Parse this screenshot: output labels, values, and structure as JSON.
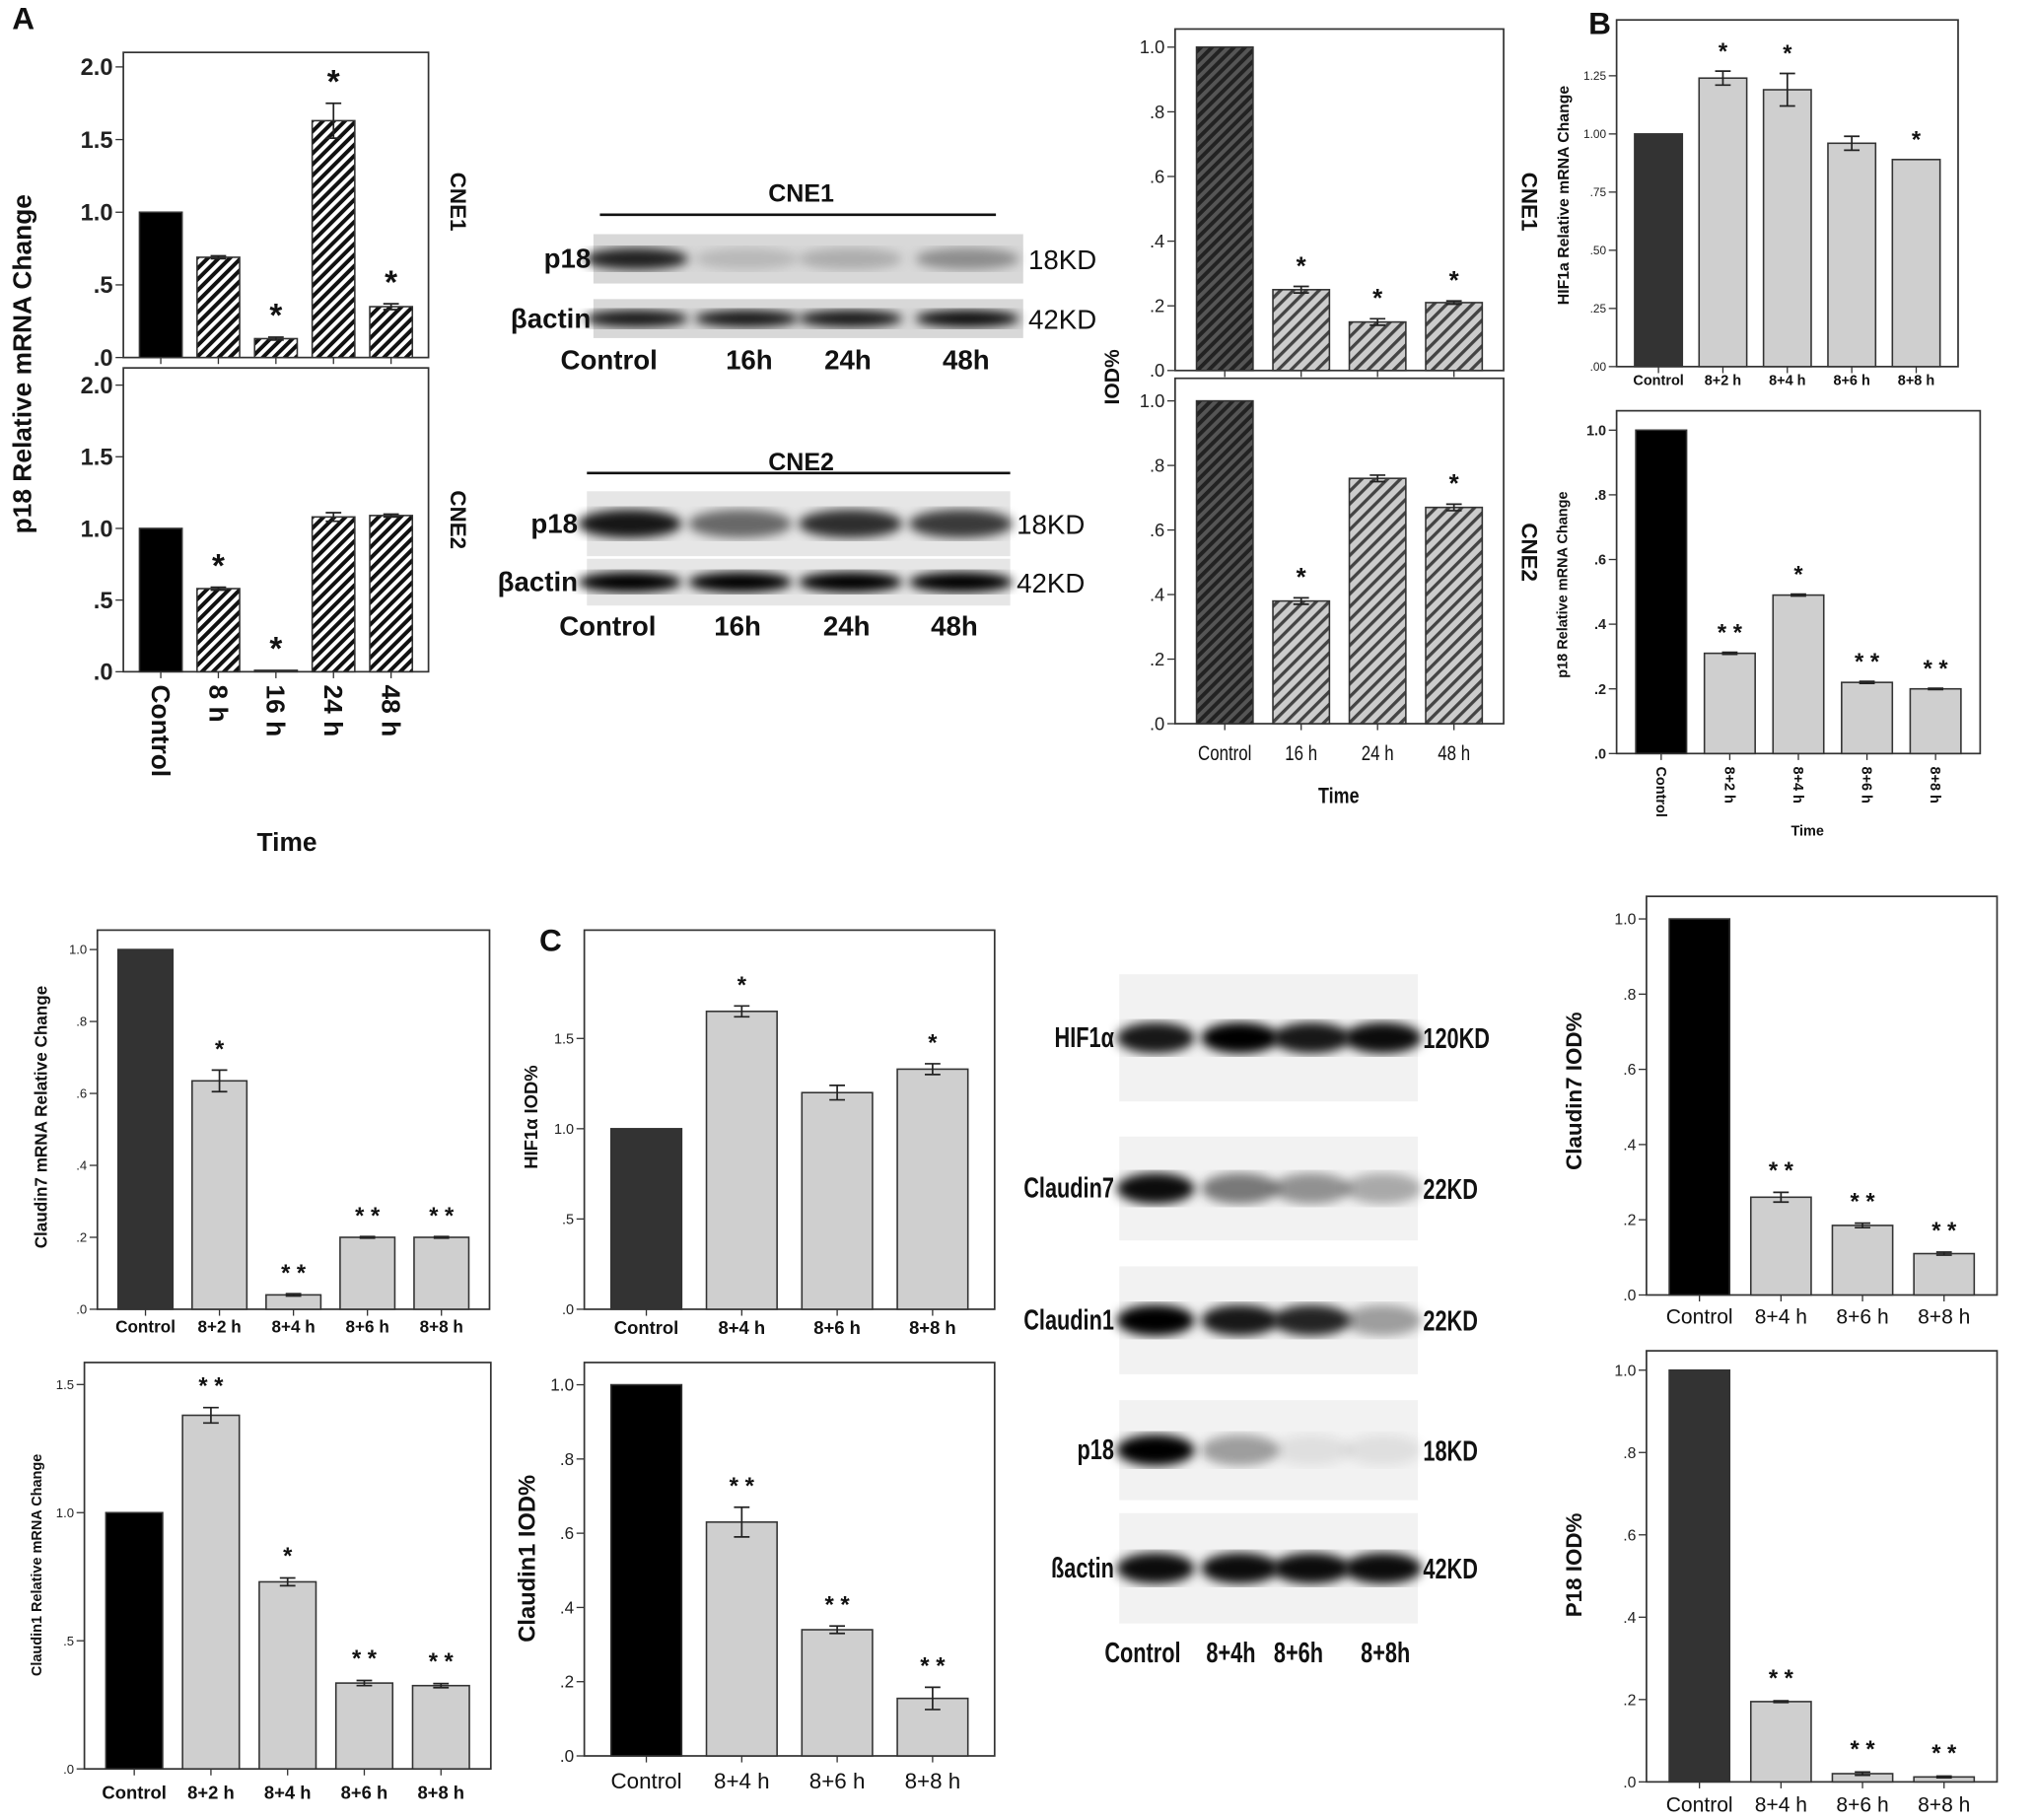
{
  "panel_letters": [
    "A",
    "B",
    "C"
  ],
  "shared_labels": {
    "a_mrna_ylabel": "p18 Relative mRNA Change",
    "a_iod_ylabel": "IOD%"
  },
  "chart_data": [
    {
      "type": "bar",
      "side_label": "CNE1",
      "categories": [
        "Control",
        "8 h",
        "16 h",
        "24 h",
        "48 h"
      ],
      "show_categories": false,
      "values": [
        1.0,
        0.69,
        0.13,
        1.63,
        0.35
      ],
      "errors": [
        0,
        0.01,
        0.01,
        0.12,
        0.02
      ],
      "significance": [
        "",
        "",
        "*",
        "*",
        "*"
      ],
      "yticks": [
        0,
        0.5,
        1.0,
        1.5,
        2.0
      ],
      "ytick_labels": [
        ".0",
        ".5",
        "1.0",
        "1.5",
        "2.0"
      ],
      "ylim": [
        0,
        2.1
      ],
      "style": "hatched-black"
    },
    {
      "type": "bar",
      "side_label": "CNE2",
      "xlabel": "Time",
      "categories": [
        "Control",
        "8 h",
        "16 h",
        "24 h",
        "48 h"
      ],
      "values": [
        1.0,
        0.58,
        0.01,
        1.08,
        1.09
      ],
      "errors": [
        0,
        0.01,
        0,
        0.03,
        0.01
      ],
      "significance": [
        "",
        "*",
        "*",
        "",
        ""
      ],
      "yticks": [
        0,
        0.5,
        1.0,
        1.5,
        2.0
      ],
      "ytick_labels": [
        ".0",
        ".5",
        "1.0",
        "1.5",
        "2.0"
      ],
      "ylim": [
        0,
        2.12
      ],
      "style": "hatched-black"
    },
    {
      "type": "bar",
      "side_label": "CNE1",
      "categories": [
        "Control",
        "16 h",
        "24 h",
        "48 h"
      ],
      "show_categories": false,
      "values": [
        1.0,
        0.25,
        0.15,
        0.21
      ],
      "errors": [
        0,
        0.01,
        0.01,
        0.005
      ],
      "significance": [
        "",
        "*",
        "*",
        "*"
      ],
      "yticks": [
        0,
        0.2,
        0.4,
        0.6,
        0.8,
        1.0
      ],
      "ytick_labels": [
        ".0",
        ".2",
        ".4",
        ".6",
        ".8",
        "1.0"
      ],
      "ylim": [
        0,
        1.056
      ],
      "style": "hatched-gray"
    },
    {
      "type": "bar",
      "side_label": "CNE2",
      "xlabel": "Time",
      "categories": [
        "Control",
        "16 h",
        "24 h",
        "48 h"
      ],
      "values": [
        1.0,
        0.38,
        0.76,
        0.67
      ],
      "errors": [
        0,
        0.01,
        0.01,
        0.01
      ],
      "significance": [
        "",
        "*",
        "",
        "*"
      ],
      "yticks": [
        0,
        0.2,
        0.4,
        0.6,
        0.8,
        1.0
      ],
      "ytick_labels": [
        ".0",
        ".2",
        ".4",
        ".6",
        ".8",
        "1.0"
      ],
      "ylim": [
        0,
        1.07
      ],
      "style": "hatched-gray"
    },
    {
      "type": "bar",
      "ylabel": "HIF1a Relative mRNA Change",
      "categories": [
        "Control",
        "8+2 h",
        "8+4 h",
        "8+6 h",
        "8+8 h"
      ],
      "values": [
        1.0,
        1.24,
        1.19,
        0.96,
        0.89
      ],
      "errors": [
        0,
        0.03,
        0.07,
        0.03,
        0
      ],
      "significance": [
        "",
        "*",
        "*",
        "",
        "*"
      ],
      "yticks": [
        0,
        0.25,
        0.5,
        0.75,
        1.0,
        1.25
      ],
      "ytick_labels": [
        ".00",
        ".25",
        ".50",
        ".75",
        "1.00",
        "1.25"
      ],
      "ylim": [
        0,
        1.49
      ],
      "style": "solid-dark"
    },
    {
      "type": "bar",
      "ylabel": "p18 Relative mRNA Change",
      "xlabel": "Time",
      "categories": [
        "Control",
        "8+2 h",
        "8+4 h",
        "8+6 h",
        "8+8 h"
      ],
      "values": [
        1.0,
        0.31,
        0.49,
        0.22,
        0.2
      ],
      "errors": [
        0,
        0.003,
        0.003,
        0.003,
        0.002
      ],
      "significance": [
        "",
        "* *",
        "*",
        "* *",
        "* *"
      ],
      "yticks": [
        0,
        0.2,
        0.4,
        0.6,
        0.8,
        1.0
      ],
      "ytick_labels": [
        ".0",
        ".2",
        ".4",
        ".6",
        ".8",
        "1.0"
      ],
      "ylim": [
        0,
        1.06
      ],
      "style": "solid-black"
    },
    {
      "type": "bar",
      "ylabel": "Claudin7 mRNA Relative Change",
      "categories": [
        "Control",
        "8+2 h",
        "8+4 h",
        "8+6 h",
        "8+8 h"
      ],
      "values": [
        1.0,
        0.635,
        0.04,
        0.2,
        0.2
      ],
      "errors": [
        0,
        0.03,
        0.003,
        0.002,
        0.002
      ],
      "significance": [
        "",
        "*",
        "* *",
        "* *",
        "* *"
      ],
      "yticks": [
        0,
        0.2,
        0.4,
        0.6,
        0.8,
        1.0
      ],
      "ytick_labels": [
        ".0",
        ".2",
        ".4",
        ".6",
        ".8",
        "1.0"
      ],
      "ylim": [
        0,
        1.054
      ],
      "style": "solid-dark"
    },
    {
      "type": "bar",
      "ylabel": "HIF1α IOD%",
      "categories": [
        "Control",
        "8+4 h",
        "8+6 h",
        "8+8 h"
      ],
      "values": [
        1.0,
        1.65,
        1.2,
        1.33
      ],
      "errors": [
        0,
        0.03,
        0.04,
        0.03
      ],
      "significance": [
        "",
        "*",
        "",
        "*"
      ],
      "yticks": [
        0,
        0.5,
        1.0,
        1.5
      ],
      "ytick_labels": [
        ".0",
        ".5",
        "1.0",
        "1.5"
      ],
      "ylim": [
        0,
        2.1
      ],
      "style": "solid-dark"
    },
    {
      "type": "bar",
      "ylabel": "Claudin1 Relative mRNA Change",
      "categories": [
        "Control",
        "8+2 h",
        "8+4 h",
        "8+6 h",
        "8+8 h"
      ],
      "values": [
        1.0,
        1.38,
        0.73,
        0.335,
        0.325
      ],
      "errors": [
        0,
        0.03,
        0.015,
        0.01,
        0.008
      ],
      "significance": [
        "",
        "* *",
        "*",
        "* *",
        "* *"
      ],
      "yticks": [
        0,
        0.5,
        1.0,
        1.5
      ],
      "ytick_labels": [
        ".0",
        ".5",
        "1.0",
        "1.5"
      ],
      "ylim": [
        0,
        1.586
      ],
      "style": "solid-black"
    },
    {
      "type": "bar",
      "ylabel": "Claudin1 IOD%",
      "categories": [
        "Control",
        "8+4 h",
        "8+6 h",
        "8+8 h"
      ],
      "values": [
        1.0,
        0.63,
        0.34,
        0.155
      ],
      "errors": [
        0,
        0.04,
        0.01,
        0.03
      ],
      "significance": [
        "",
        "* *",
        "* *",
        "* *"
      ],
      "yticks": [
        0,
        0.2,
        0.4,
        0.6,
        0.8,
        1.0
      ],
      "ytick_labels": [
        ".0",
        ".2",
        ".4",
        ".6",
        ".8",
        "1.0"
      ],
      "ylim": [
        0,
        1.06
      ],
      "style": "solid-black"
    },
    {
      "type": "bar",
      "ylabel": "Claudin7 IOD%",
      "categories": [
        "Control",
        "8+4 h",
        "8+6 h",
        "8+8 h"
      ],
      "values": [
        1.0,
        0.26,
        0.185,
        0.11
      ],
      "errors": [
        0,
        0.013,
        0.006,
        0.004
      ],
      "significance": [
        "",
        "* *",
        "* *",
        "* *"
      ],
      "yticks": [
        0,
        0.2,
        0.4,
        0.6,
        0.8,
        1.0
      ],
      "ytick_labels": [
        ".0",
        ".2",
        ".4",
        ".6",
        ".8",
        "1.0"
      ],
      "ylim": [
        0,
        1.06
      ],
      "style": "solid-black"
    },
    {
      "type": "bar",
      "ylabel": "P18 IOD%",
      "categories": [
        "Control",
        "8+4 h",
        "8+6 h",
        "8+8 h"
      ],
      "values": [
        1.0,
        0.195,
        0.02,
        0.012
      ],
      "errors": [
        0,
        0.002,
        0.004,
        0.002
      ],
      "significance": [
        "",
        "* *",
        "* *",
        "* *"
      ],
      "yticks": [
        0,
        0.2,
        0.4,
        0.6,
        0.8,
        1.0
      ],
      "ytick_labels": [
        ".0",
        ".2",
        ".4",
        ".6",
        ".8",
        "1.0"
      ],
      "ylim": [
        0,
        1.047
      ],
      "style": "solid-dark"
    }
  ],
  "blots": [
    {
      "title": "CNE1",
      "lanes": [
        "Control",
        "16h",
        "24h",
        "48h"
      ],
      "rows": [
        {
          "label": "p18",
          "size": "18KD",
          "intensity": [
            0.85,
            0.15,
            0.2,
            0.35
          ]
        },
        {
          "label": "βactin",
          "size": "42KD",
          "intensity": [
            0.9,
            0.9,
            0.9,
            0.95
          ]
        }
      ]
    },
    {
      "title": "CNE2",
      "lanes": [
        "Control",
        "16h",
        "24h",
        "48h"
      ],
      "rows": [
        {
          "label": "p18",
          "size": "18KD",
          "intensity": [
            0.9,
            0.55,
            0.8,
            0.75
          ]
        },
        {
          "label": "βactin",
          "size": "42KD",
          "intensity": [
            1,
            1,
            1,
            1
          ]
        }
      ]
    },
    {
      "title": "",
      "lanes": [
        "Control",
        "8+4h",
        "8+6h",
        "8+8h"
      ],
      "rows": [
        {
          "label": "HIF1α",
          "size": "120KD",
          "intensity": [
            0.9,
            1,
            0.9,
            0.95
          ]
        },
        {
          "label": "Claudin7",
          "size": "22KD",
          "intensity": [
            0.95,
            0.5,
            0.4,
            0.3
          ]
        },
        {
          "label": "Claudin1",
          "size": "22KD",
          "intensity": [
            1,
            0.9,
            0.85,
            0.35
          ]
        },
        {
          "label": "p18",
          "size": "18KD",
          "intensity": [
            1,
            0.35,
            0.08,
            0.08
          ]
        },
        {
          "label": "ßactin",
          "size": "42KD",
          "intensity": [
            0.95,
            0.95,
            0.95,
            0.95
          ]
        }
      ]
    }
  ]
}
